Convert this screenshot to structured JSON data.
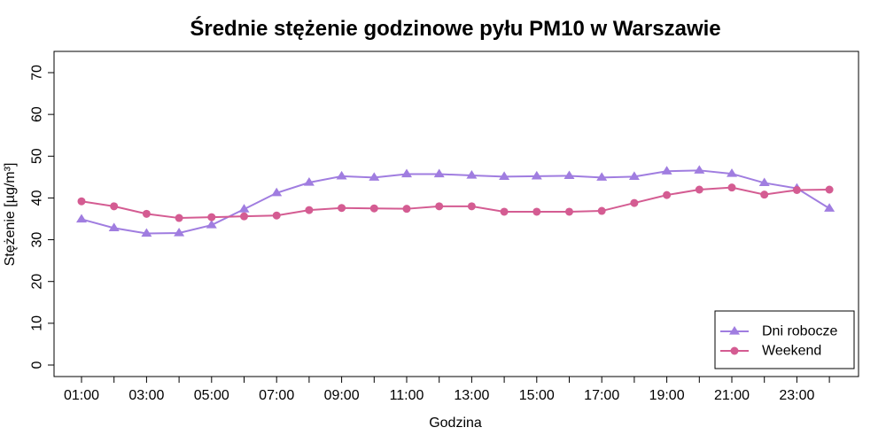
{
  "chart_data": {
    "type": "line",
    "title": "Średnie stężenie godzinowe pyłu PM10 w Warszawie",
    "xlabel": "Godzina",
    "ylabel": "Stężenie [µg/m³]",
    "x": [
      "01:00",
      "02:00",
      "03:00",
      "04:00",
      "05:00",
      "06:00",
      "07:00",
      "08:00",
      "09:00",
      "10:00",
      "11:00",
      "12:00",
      "13:00",
      "14:00",
      "15:00",
      "16:00",
      "17:00",
      "18:00",
      "19:00",
      "20:00",
      "21:00",
      "22:00",
      "23:00",
      "24:00"
    ],
    "x_tick_labels": [
      "01:00",
      "03:00",
      "05:00",
      "07:00",
      "09:00",
      "11:00",
      "13:00",
      "15:00",
      "17:00",
      "19:00",
      "21:00",
      "23:00"
    ],
    "ylim": [
      0,
      70
    ],
    "y_ticks": [
      0,
      10,
      20,
      30,
      40,
      50,
      60,
      70
    ],
    "grid": false,
    "legend_position": "bottom-right",
    "series": [
      {
        "name": "Dni robocze",
        "marker": "triangle",
        "color": "#a07de0",
        "values": [
          34.9,
          32.8,
          31.5,
          31.6,
          33.5,
          37.3,
          41.2,
          43.7,
          45.2,
          44.9,
          45.7,
          45.7,
          45.4,
          45.1,
          45.2,
          45.3,
          44.9,
          45.1,
          46.4,
          46.6,
          45.8,
          43.6,
          42.3,
          37.5
        ]
      },
      {
        "name": "Weekend",
        "marker": "circle",
        "color": "#d45c92",
        "values": [
          39.2,
          38.0,
          36.2,
          35.2,
          35.4,
          35.6,
          35.8,
          37.1,
          37.6,
          37.5,
          37.4,
          38.0,
          38.0,
          36.7,
          36.7,
          36.7,
          36.9,
          38.8,
          40.7,
          42.0,
          42.5,
          40.8,
          41.9,
          42.0
        ]
      }
    ]
  }
}
